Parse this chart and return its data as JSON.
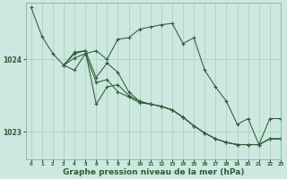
{
  "background_color": "#cce8e0",
  "grid_color": "#aaccbb",
  "line_color": "#2d5e35",
  "xlabel": "Graphe pression niveau de la mer (hPa)",
  "xlabel_fontsize": 6.5,
  "yticks": [
    1023,
    1024
  ],
  "xlim": [
    -0.5,
    23
  ],
  "ylim": [
    1022.62,
    1024.78
  ],
  "s1_x": [
    0,
    1,
    2,
    3,
    4,
    5,
    6,
    7,
    8,
    9,
    10,
    11,
    12,
    13,
    14,
    15,
    16,
    17,
    18,
    19,
    20,
    21,
    22,
    23
  ],
  "s1_y": [
    1024.72,
    1024.32,
    1024.08,
    1023.92,
    1023.85,
    1024.08,
    1024.12,
    1024.0,
    1024.28,
    1024.3,
    1024.42,
    1024.45,
    1024.48,
    1024.5,
    1024.22,
    1024.3,
    1023.85,
    1023.62,
    1023.42,
    1023.1,
    1023.18,
    1022.82,
    1023.18,
    1023.18
  ],
  "s2_x": [
    3,
    4,
    5,
    6,
    7,
    8,
    9,
    10,
    11,
    12,
    13,
    14,
    15,
    16,
    17,
    18,
    19,
    20,
    21,
    22,
    23
  ],
  "s2_y": [
    1023.92,
    1024.02,
    1024.08,
    1023.68,
    1023.72,
    1023.55,
    1023.48,
    1023.4,
    1023.38,
    1023.35,
    1023.3,
    1023.2,
    1023.08,
    1022.98,
    1022.9,
    1022.85,
    1022.82,
    1022.82,
    1022.82,
    1022.9,
    1022.9
  ],
  "s3_x": [
    3,
    4,
    5,
    6,
    7,
    8,
    9,
    10,
    11,
    12,
    13,
    14,
    15,
    16,
    17,
    18,
    19,
    20,
    21,
    22,
    23
  ],
  "s3_y": [
    1023.92,
    1024.1,
    1024.12,
    1023.38,
    1023.62,
    1023.65,
    1023.5,
    1023.42,
    1023.38,
    1023.35,
    1023.3,
    1023.2,
    1023.08,
    1022.98,
    1022.9,
    1022.85,
    1022.82,
    1022.82,
    1022.82,
    1022.9,
    1022.9
  ],
  "s4_x": [
    3,
    4,
    5,
    6,
    7,
    8,
    9,
    10,
    11,
    12,
    13,
    14,
    15,
    16,
    17,
    18,
    19,
    20,
    21,
    22,
    23
  ],
  "s4_y": [
    1023.92,
    1024.08,
    1024.12,
    1023.75,
    1023.95,
    1023.82,
    1023.55,
    1023.42,
    1023.38,
    1023.35,
    1023.3,
    1023.2,
    1023.08,
    1022.98,
    1022.9,
    1022.85,
    1022.82,
    1022.82,
    1022.82,
    1022.9,
    1022.9
  ]
}
